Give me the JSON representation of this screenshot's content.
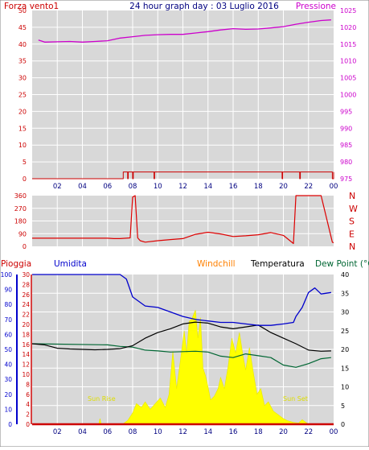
{
  "panel1": {
    "title": "24 hour graph day : 03 Luglio 2016",
    "left_label": "Forza vento1",
    "right_label": "Pressione",
    "left_ticks": [
      "0",
      "5",
      "10",
      "15",
      "20",
      "25",
      "30",
      "35",
      "40",
      "45",
      "50"
    ],
    "right_ticks": [
      "975",
      "980",
      "985",
      "990",
      "995",
      "1000",
      "1005",
      "1010",
      "1015",
      "1020",
      "1025"
    ],
    "colors": {
      "left": "#cc0000",
      "right": "#cc00cc",
      "title": "#000080"
    }
  },
  "panel2": {
    "left_ticks": [
      "0",
      "90",
      "180",
      "270",
      "360"
    ],
    "right_ticks": [
      "N",
      "E",
      "S",
      "W",
      "N"
    ],
    "colors": {
      "ticks": "#cc0000"
    }
  },
  "panel3": {
    "header": {
      "rain": "Pioggia",
      "humidity": "Umidita",
      "windchill": "Windchill",
      "temperature": "Temperatura",
      "dewpoint": "Dew Point (°C"
    },
    "rain_ticks": [
      "0",
      "2",
      "4",
      "6",
      "8",
      "10",
      "12",
      "14",
      "16",
      "18",
      "20",
      "22",
      "24",
      "26",
      "28",
      "30"
    ],
    "humidity_ticks": [
      "0",
      "10",
      "20",
      "30",
      "40",
      "50",
      "60",
      "70",
      "80",
      "90",
      "100"
    ],
    "temp_ticks": [
      "0",
      "5",
      "10",
      "15",
      "20",
      "25",
      "30",
      "35",
      "40"
    ],
    "sunrise_label": "Sun Rise",
    "sunset_label": "Sun Set",
    "colors": {
      "rain": "#cc0000",
      "humidity": "#0000cc",
      "windchill": "#ff8000",
      "temperature": "#000000",
      "dewpoint": "#006633",
      "solar": "#ffff00"
    }
  },
  "x_ticks": [
    "02",
    "04",
    "06",
    "08",
    "10",
    "12",
    "14",
    "16",
    "18",
    "20",
    "22",
    "00"
  ],
  "chart_data": [
    {
      "type": "line",
      "series": [
        {
          "name": "Forza vento1",
          "axis": "left",
          "x": [
            0,
            7.2,
            7.25,
            7.6,
            7.65,
            8.0,
            8.05,
            9.7,
            9.75,
            19.9,
            19.95,
            21.3,
            21.35,
            23.9,
            24
          ],
          "values": [
            0,
            0,
            2,
            0,
            2,
            0,
            2,
            0,
            2,
            0,
            2,
            0,
            2,
            0,
            2
          ]
        },
        {
          "name": "Pressione",
          "axis": "right",
          "x": [
            0.5,
            1,
            2,
            3,
            4,
            5,
            6,
            7,
            8,
            9,
            10,
            11,
            12,
            13,
            14,
            15,
            16,
            17,
            18,
            19,
            20,
            21,
            22,
            23,
            23.8
          ],
          "values": [
            1016.2,
            1015.6,
            1015.7,
            1015.8,
            1015.6,
            1015.8,
            1016.0,
            1016.8,
            1017.2,
            1017.6,
            1017.8,
            1017.9,
            1017.9,
            1018.3,
            1018.7,
            1019.2,
            1019.6,
            1019.4,
            1019.5,
            1019.8,
            1020.2,
            1020.9,
            1021.5,
            1022.0,
            1022.2
          ]
        }
      ],
      "xlim": [
        0,
        24
      ],
      "ylim_left": [
        0,
        50
      ],
      "ylim_right": [
        975,
        1025
      ],
      "grid": true
    },
    {
      "type": "line",
      "series": [
        {
          "x": [
            0,
            6,
            6.5,
            7,
            7.8,
            8.0,
            8.2,
            8.4,
            8.6,
            9,
            10,
            11,
            12,
            13,
            14,
            15,
            16,
            17,
            18,
            19,
            20,
            20.8,
            21.0,
            21.1,
            21.3,
            22,
            23,
            23.9,
            24
          ],
          "values": [
            58,
            58,
            55,
            55,
            60,
            350,
            360,
            60,
            40,
            30,
            40,
            48,
            55,
            85,
            100,
            88,
            70,
            75,
            82,
            98,
            78,
            20,
            360,
            360,
            360,
            360,
            360,
            30,
            25
          ]
        }
      ],
      "xlim": [
        0,
        24
      ],
      "ylim": [
        0,
        360
      ],
      "grid": true
    },
    {
      "type": "line",
      "series": [
        {
          "name": "Pioggia",
          "axis": "rain",
          "x": [
            0,
            24
          ],
          "values": [
            0,
            0
          ]
        },
        {
          "name": "Umidita",
          "axis": "humidity",
          "x": [
            0,
            6,
            7,
            7.5,
            8,
            9,
            10,
            11,
            12,
            13,
            14,
            15,
            16,
            17,
            18,
            19,
            20,
            20.8,
            21,
            21.5,
            22,
            22.5,
            23,
            23.8
          ],
          "values": [
            100,
            100,
            100,
            97,
            85,
            79,
            78,
            75,
            72,
            70,
            69,
            68,
            68,
            67,
            66,
            66,
            67,
            68,
            72,
            78,
            88,
            91,
            87,
            88
          ]
        },
        {
          "name": "Temperatura",
          "axis": "temp",
          "x": [
            0,
            1,
            2,
            3,
            4,
            5,
            6,
            7,
            8,
            9,
            10,
            11,
            12,
            13,
            14,
            15,
            16,
            17,
            18,
            19,
            20,
            21,
            22,
            23,
            23.8
          ],
          "values": [
            21.5,
            21.2,
            20.3,
            20.1,
            20.0,
            19.9,
            20.0,
            20.2,
            21.0,
            23.0,
            24.5,
            25.5,
            26.8,
            27.3,
            27.0,
            26.0,
            25.5,
            26.0,
            26.5,
            24.5,
            23.0,
            21.5,
            19.8,
            19.5,
            19.6
          ]
        },
        {
          "name": "Dew Point",
          "axis": "temp",
          "x": [
            0,
            6,
            7,
            8,
            9,
            10,
            11,
            12,
            13,
            14,
            15,
            16,
            17,
            18,
            19,
            20,
            21,
            22,
            23,
            23.8
          ],
          "values": [
            21.5,
            21.2,
            20.8,
            20.6,
            19.8,
            19.6,
            19.3,
            19.4,
            19.5,
            19.3,
            18.2,
            17.8,
            18.8,
            18.3,
            17.8,
            15.8,
            15.2,
            16.2,
            17.5,
            17.8
          ]
        },
        {
          "name": "Solar",
          "axis": "temp",
          "x": [
            0,
            5.3,
            5.4,
            5.5,
            7.2,
            7.6,
            8.0,
            8.3,
            8.7,
            9.0,
            9.4,
            9.8,
            10.2,
            10.6,
            10.9,
            11.2,
            11.5,
            11.8,
            12.1,
            12.3,
            12.5,
            12.7,
            13.0,
            13.2,
            13.4,
            13.6,
            13.8,
            14.0,
            14.2,
            14.5,
            14.8,
            15.0,
            15.3,
            15.6,
            15.9,
            16.2,
            16.5,
            16.8,
            17.0,
            17.3,
            17.6,
            17.9,
            18.2,
            18.5,
            18.8,
            19.2,
            19.6,
            20.0,
            20.3,
            20.8,
            21.2,
            21.5,
            22.0,
            24
          ],
          "values": [
            0,
            0,
            1.5,
            0,
            0,
            1.0,
            3.0,
            5.5,
            4.5,
            6.0,
            4.0,
            5.5,
            7.0,
            4.5,
            8.0,
            19.5,
            9.5,
            17.0,
            25.0,
            19.0,
            27.5,
            28.0,
            30.5,
            23.0,
            28.5,
            15.0,
            13.0,
            10.0,
            6.5,
            7.5,
            9.5,
            12.5,
            9.5,
            15.5,
            23.0,
            19.0,
            24.5,
            18.0,
            14.5,
            20.5,
            14.0,
            8.0,
            9.5,
            5.0,
            6.0,
            3.5,
            2.5,
            1.5,
            1.0,
            0.5,
            0.3,
            1.2,
            0,
            0
          ]
        }
      ],
      "xlim": [
        0,
        24
      ],
      "ylim_rain": [
        0,
        30
      ],
      "ylim_humidity": [
        0,
        100
      ],
      "ylim_temp": [
        0,
        40
      ],
      "grid": true
    }
  ]
}
